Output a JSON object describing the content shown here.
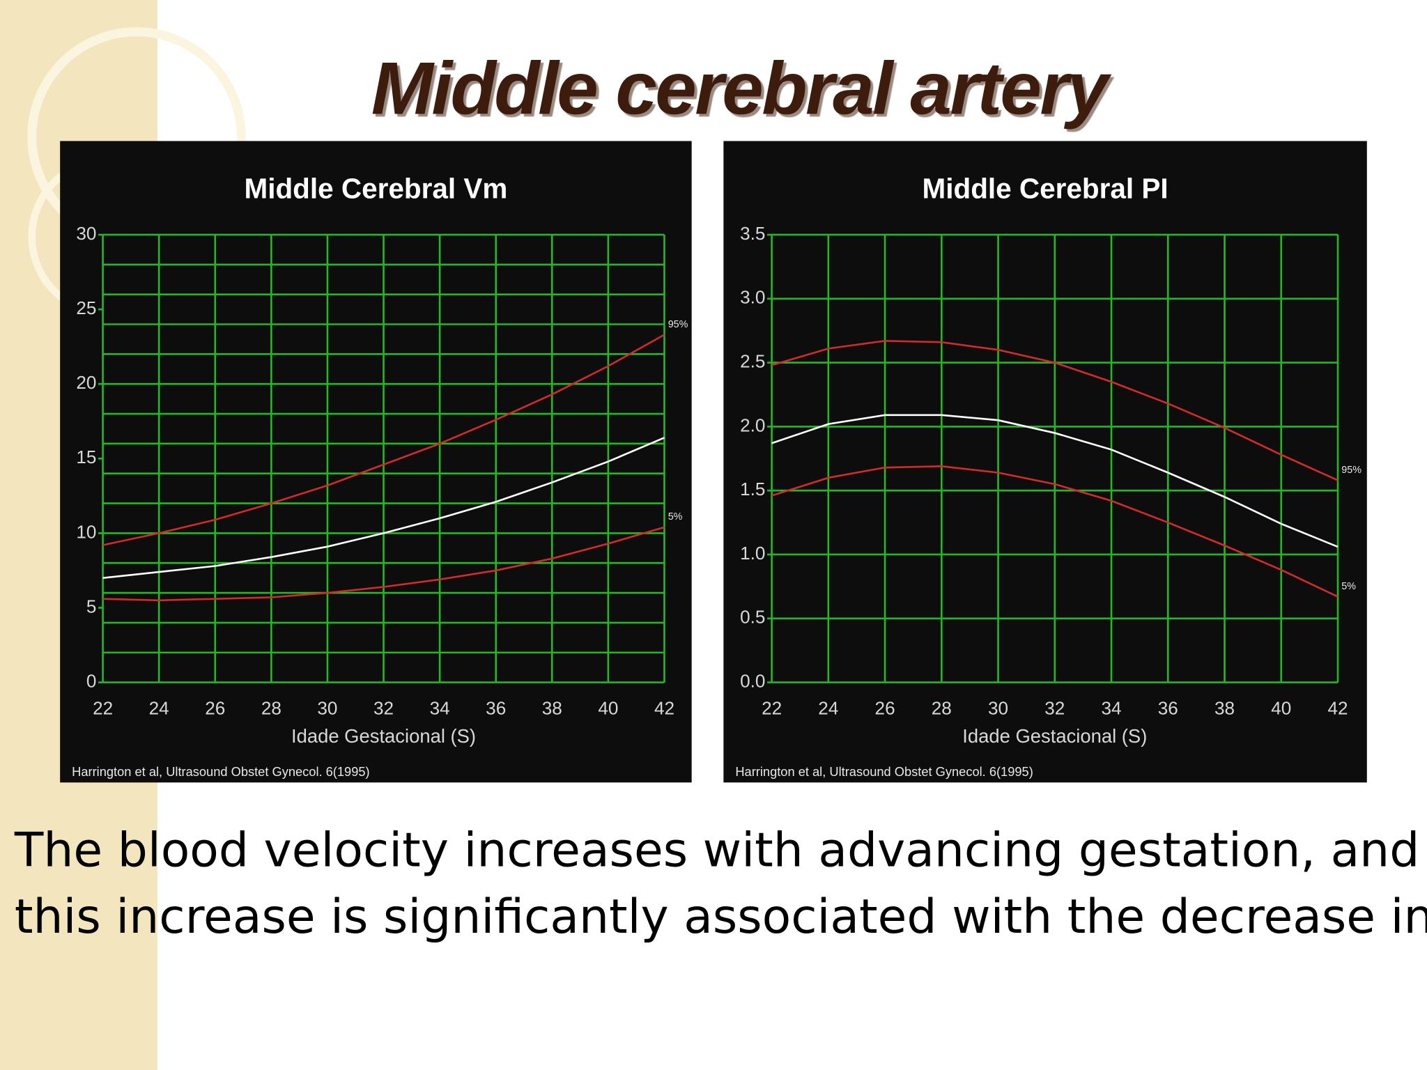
{
  "title": "Middle cerebral artery",
  "text": [
    "The blood velocity increases with advancing gestation, and",
    "this increase is significantly associated with the decrease in PI"
  ],
  "chart_data": [
    {
      "type": "line",
      "title": "Middle Cerebral Vm",
      "x_label": "Idade Gestacional (S)",
      "source": "Harrington et al, Ultrasound Obstet Gynecol. 6(1995)",
      "x": [
        22,
        24,
        26,
        28,
        30,
        32,
        34,
        36,
        38,
        40,
        42
      ],
      "xlim": [
        22,
        42
      ],
      "xticks": [
        22,
        24,
        26,
        28,
        30,
        32,
        34,
        36,
        38,
        40,
        42
      ],
      "ylim": [
        0,
        30
      ],
      "yticks": [
        0,
        5,
        10,
        15,
        20,
        25,
        30
      ],
      "ygrid": [
        0,
        2,
        4,
        6,
        8,
        10,
        12,
        14,
        16,
        18,
        20,
        22,
        24,
        26,
        28,
        30
      ],
      "grid": true,
      "grid_color": "#25b825",
      "series": [
        {
          "name": "95%",
          "color": "#d42a2a",
          "values": [
            9.2,
            10.0,
            10.9,
            12.0,
            13.2,
            14.6,
            16.0,
            17.6,
            19.3,
            21.2,
            23.3
          ]
        },
        {
          "color": "#ffffff",
          "values": [
            7.0,
            7.4,
            7.8,
            8.4,
            9.1,
            10.0,
            11.0,
            12.1,
            13.4,
            14.8,
            16.4
          ]
        },
        {
          "name": "5%",
          "color": "#d42a2a",
          "values": [
            5.6,
            5.5,
            5.6,
            5.7,
            6.0,
            6.4,
            6.9,
            7.5,
            8.3,
            9.3,
            10.4
          ]
        }
      ]
    },
    {
      "type": "line",
      "title": "Middle Cerebral PI",
      "x_label": "Idade Gestacional (S)",
      "source": "Harrington et al, Ultrasound Obstet Gynecol. 6(1995)",
      "x": [
        22,
        24,
        26,
        28,
        30,
        32,
        34,
        36,
        38,
        40,
        42
      ],
      "xlim": [
        22,
        42
      ],
      "xticks": [
        22,
        24,
        26,
        28,
        30,
        32,
        34,
        36,
        38,
        40,
        42
      ],
      "ylim": [
        0,
        3.5
      ],
      "yticks": [
        {
          "value": 0,
          "label": "0.0"
        },
        0.5,
        {
          "value": 1,
          "label": "1.0"
        },
        1.5,
        {
          "value": 2,
          "label": "2.0"
        },
        2.5,
        {
          "value": 3,
          "label": "3.0"
        },
        3.5
      ],
      "grid": true,
      "grid_color": "#25b825",
      "series": [
        {
          "name": "95%",
          "color": "#d42a2a",
          "values": [
            2.48,
            2.61,
            2.67,
            2.66,
            2.6,
            2.5,
            2.35,
            2.18,
            1.99,
            1.78,
            1.58
          ]
        },
        {
          "color": "#ffffff",
          "values": [
            1.87,
            2.02,
            2.09,
            2.09,
            2.05,
            1.95,
            1.82,
            1.64,
            1.45,
            1.24,
            1.06
          ]
        },
        {
          "name": "5%",
          "color": "#d42a2a",
          "values": [
            1.46,
            1.6,
            1.68,
            1.69,
            1.64,
            1.55,
            1.42,
            1.25,
            1.07,
            0.88,
            0.67
          ]
        }
      ]
    }
  ]
}
